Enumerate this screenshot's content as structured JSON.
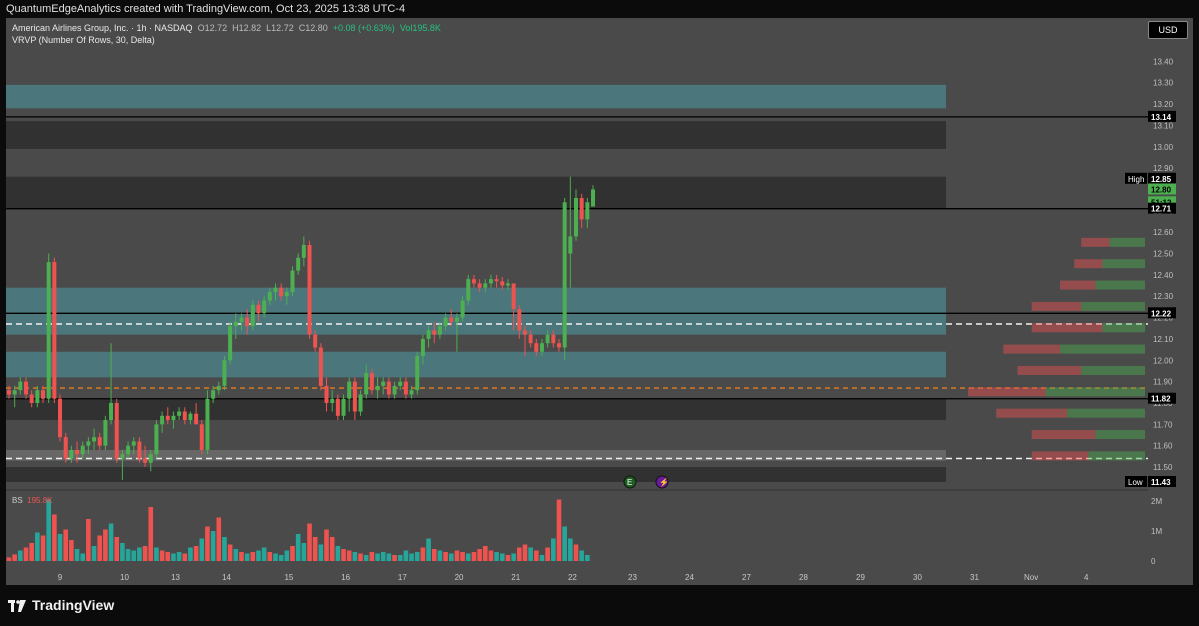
{
  "header": {
    "credit": "QuantumEdgeAnalytics created with TradingView.com, Oct 23, 2025 13:38 UTC-4"
  },
  "legend": {
    "symbol": "American Airlines Group, Inc. · 1h · NASDAQ",
    "open": "O12.72",
    "high": "H12.82",
    "low": "L12.72",
    "close": "C12.80",
    "change": "+0.08 (+0.63%)",
    "volume": "Vol195.8K",
    "indicator": "VRVP (Number Of Rows, 30, Delta)"
  },
  "currency": "USD",
  "brand": "TradingView",
  "volume_legend": {
    "label": "BS",
    "value": "195.8K"
  },
  "colors": {
    "up": "#4caf50",
    "down": "#ef5350",
    "upVolume": "#26a69a",
    "downVolume": "#ef5350",
    "zone": "#4ec9d8",
    "dimZone": "#262626"
  },
  "chart_data": {
    "type": "candlestick",
    "title": "American Airlines Group, Inc. · 1h · NASDAQ",
    "ylim": [
      11.43,
      13.5
    ],
    "yticks": [
      11.5,
      11.6,
      11.7,
      11.8,
      11.9,
      12.0,
      12.1,
      12.2,
      12.3,
      12.4,
      12.5,
      12.6,
      12.7,
      12.8,
      12.9,
      13.0,
      13.1,
      13.2,
      13.3,
      13.4
    ],
    "ytick_labels": [
      "11.50",
      "11.60",
      "11.70",
      "11.80",
      "11.90",
      "12.00",
      "12.10",
      "12.20",
      "12.30",
      "12.40",
      "12.50",
      "12.60",
      "12.70",
      "12.80",
      "12.90",
      "13.00",
      "13.10",
      "13.20",
      "13.30",
      "13.40"
    ],
    "x_labels": [
      "9",
      "10",
      "13",
      "14",
      "15",
      "16",
      "17",
      "20",
      "21",
      "22",
      "23",
      "24",
      "27",
      "28",
      "29",
      "30",
      "31",
      "Nov",
      "4"
    ],
    "candles": [
      [
        11.86,
        11.88,
        11.82,
        11.84
      ],
      [
        11.84,
        11.88,
        11.78,
        11.86
      ],
      [
        11.86,
        11.92,
        11.84,
        11.9
      ],
      [
        11.9,
        11.92,
        11.82,
        11.84
      ],
      [
        11.84,
        11.86,
        11.78,
        11.8
      ],
      [
        11.8,
        11.88,
        11.78,
        11.86
      ],
      [
        11.86,
        11.88,
        11.8,
        11.82
      ],
      [
        11.82,
        12.5,
        11.8,
        12.46
      ],
      [
        12.46,
        12.48,
        11.8,
        11.82
      ],
      [
        11.82,
        11.84,
        11.62,
        11.64
      ],
      [
        11.64,
        11.66,
        11.52,
        11.54
      ],
      [
        11.54,
        11.6,
        11.52,
        11.58
      ],
      [
        11.58,
        11.62,
        11.52,
        11.56
      ],
      [
        11.56,
        11.62,
        11.54,
        11.6
      ],
      [
        11.6,
        11.64,
        11.56,
        11.62
      ],
      [
        11.62,
        11.68,
        11.58,
        11.64
      ],
      [
        11.64,
        11.66,
        11.58,
        11.6
      ],
      [
        11.6,
        11.74,
        11.58,
        11.72
      ],
      [
        11.72,
        12.08,
        11.7,
        11.8
      ],
      [
        11.8,
        11.82,
        11.52,
        11.54
      ],
      [
        11.54,
        11.58,
        11.44,
        11.56
      ],
      [
        11.56,
        11.62,
        11.54,
        11.6
      ],
      [
        11.6,
        11.64,
        11.56,
        11.62
      ],
      [
        11.62,
        11.64,
        11.52,
        11.54
      ],
      [
        11.54,
        11.6,
        11.5,
        11.52
      ],
      [
        11.52,
        11.58,
        11.48,
        11.56
      ],
      [
        11.56,
        11.72,
        11.54,
        11.7
      ],
      [
        11.7,
        11.76,
        11.66,
        11.74
      ],
      [
        11.74,
        11.78,
        11.7,
        11.72
      ],
      [
        11.72,
        11.76,
        11.68,
        11.74
      ],
      [
        11.74,
        11.78,
        11.72,
        11.76
      ],
      [
        11.76,
        11.78,
        11.7,
        11.72
      ],
      [
        11.72,
        11.76,
        11.7,
        11.75
      ],
      [
        11.75,
        11.8,
        11.72,
        11.7
      ],
      [
        11.7,
        11.72,
        11.56,
        11.58
      ],
      [
        11.58,
        11.86,
        11.56,
        11.82
      ],
      [
        11.82,
        11.88,
        11.8,
        11.86
      ],
      [
        11.86,
        11.9,
        11.84,
        11.88
      ],
      [
        11.88,
        12.02,
        11.86,
        12.0
      ],
      [
        12.0,
        12.18,
        11.98,
        12.16
      ],
      [
        12.16,
        12.22,
        12.1,
        12.18
      ],
      [
        12.18,
        12.22,
        12.14,
        12.2
      ],
      [
        12.2,
        12.24,
        12.12,
        12.16
      ],
      [
        12.16,
        12.28,
        12.14,
        12.26
      ],
      [
        12.26,
        12.28,
        12.18,
        12.22
      ],
      [
        12.22,
        12.3,
        12.2,
        12.28
      ],
      [
        12.28,
        12.34,
        12.26,
        12.32
      ],
      [
        12.32,
        12.36,
        12.28,
        12.34
      ],
      [
        12.34,
        12.36,
        12.28,
        12.3
      ],
      [
        12.3,
        12.34,
        12.26,
        12.32
      ],
      [
        12.32,
        12.44,
        12.3,
        12.42
      ],
      [
        12.42,
        12.5,
        12.4,
        12.48
      ],
      [
        12.48,
        12.58,
        12.44,
        12.54
      ],
      [
        12.54,
        12.56,
        12.1,
        12.12
      ],
      [
        12.12,
        12.14,
        12.04,
        12.06
      ],
      [
        12.06,
        12.08,
        11.86,
        11.88
      ],
      [
        11.88,
        11.92,
        11.76,
        11.8
      ],
      [
        11.8,
        11.86,
        11.76,
        11.82
      ],
      [
        11.82,
        11.84,
        11.72,
        11.74
      ],
      [
        11.74,
        11.84,
        11.72,
        11.82
      ],
      [
        11.82,
        11.92,
        11.76,
        11.9
      ],
      [
        11.9,
        11.92,
        11.72,
        11.76
      ],
      [
        11.76,
        11.86,
        11.74,
        11.84
      ],
      [
        11.84,
        11.98,
        11.82,
        11.94
      ],
      [
        11.94,
        11.96,
        11.84,
        11.86
      ],
      [
        11.86,
        11.92,
        11.82,
        11.88
      ],
      [
        11.88,
        11.92,
        11.84,
        11.9
      ],
      [
        11.9,
        11.92,
        11.82,
        11.84
      ],
      [
        11.84,
        11.9,
        11.82,
        11.88
      ],
      [
        11.88,
        11.92,
        11.86,
        11.9
      ],
      [
        11.9,
        11.92,
        11.82,
        11.84
      ],
      [
        11.84,
        11.88,
        11.82,
        11.86
      ],
      [
        11.86,
        12.04,
        11.84,
        12.02
      ],
      [
        12.02,
        12.12,
        11.98,
        12.1
      ],
      [
        12.1,
        12.16,
        12.06,
        12.14
      ],
      [
        12.14,
        12.18,
        12.08,
        12.12
      ],
      [
        12.12,
        12.18,
        12.1,
        12.16
      ],
      [
        12.16,
        12.22,
        12.14,
        12.2
      ],
      [
        12.2,
        12.24,
        12.16,
        12.18
      ],
      [
        12.18,
        12.22,
        12.04,
        12.2
      ],
      [
        12.2,
        12.3,
        12.18,
        12.28
      ],
      [
        12.28,
        12.4,
        12.26,
        12.38
      ],
      [
        12.38,
        12.4,
        12.34,
        12.36
      ],
      [
        12.36,
        12.38,
        12.32,
        12.34
      ],
      [
        12.34,
        12.38,
        12.32,
        12.36
      ],
      [
        12.36,
        12.4,
        12.34,
        12.38
      ],
      [
        12.38,
        12.4,
        12.34,
        12.37
      ],
      [
        12.37,
        12.39,
        12.33,
        12.35
      ],
      [
        12.35,
        12.38,
        12.33,
        12.36
      ],
      [
        12.36,
        12.36,
        12.14,
        12.24
      ],
      [
        12.24,
        12.26,
        12.1,
        12.14
      ],
      [
        12.14,
        12.16,
        12.02,
        12.12
      ],
      [
        12.12,
        12.14,
        12.06,
        12.08
      ],
      [
        12.08,
        12.1,
        12.02,
        12.04
      ],
      [
        12.04,
        12.1,
        12.02,
        12.08
      ],
      [
        12.08,
        12.14,
        12.06,
        12.12
      ],
      [
        12.12,
        12.14,
        12.06,
        12.08
      ],
      [
        12.08,
        12.1,
        12.04,
        12.06
      ],
      [
        12.06,
        12.76,
        12.0,
        12.74
      ],
      [
        12.5,
        12.86,
        12.34,
        12.58
      ],
      [
        12.58,
        12.8,
        12.56,
        12.76
      ],
      [
        12.76,
        12.78,
        12.62,
        12.66
      ],
      [
        12.66,
        12.76,
        12.62,
        12.74
      ],
      [
        12.72,
        12.82,
        12.72,
        12.8
      ]
    ],
    "volume": [
      [
        0.12,
        0
      ],
      [
        0.22,
        0
      ],
      [
        0.35,
        1
      ],
      [
        0.45,
        0
      ],
      [
        0.6,
        0
      ],
      [
        0.95,
        1
      ],
      [
        0.85,
        0
      ],
      [
        2.05,
        1
      ],
      [
        1.55,
        0
      ],
      [
        0.9,
        1
      ],
      [
        1.05,
        0
      ],
      [
        0.7,
        0
      ],
      [
        0.4,
        1
      ],
      [
        0.25,
        1
      ],
      [
        1.4,
        0
      ],
      [
        0.5,
        1
      ],
      [
        0.85,
        0
      ],
      [
        1.05,
        0
      ],
      [
        1.25,
        1
      ],
      [
        0.8,
        0
      ],
      [
        0.6,
        1
      ],
      [
        0.4,
        1
      ],
      [
        0.35,
        1
      ],
      [
        0.45,
        1
      ],
      [
        0.5,
        0
      ],
      [
        1.8,
        0
      ],
      [
        0.45,
        1
      ],
      [
        0.35,
        0
      ],
      [
        0.3,
        0
      ],
      [
        0.25,
        1
      ],
      [
        0.3,
        1
      ],
      [
        0.25,
        0
      ],
      [
        0.45,
        1
      ],
      [
        0.5,
        0
      ],
      [
        0.75,
        1
      ],
      [
        1.15,
        0
      ],
      [
        1.0,
        1
      ],
      [
        1.45,
        0
      ],
      [
        0.8,
        1
      ],
      [
        0.55,
        0
      ],
      [
        0.4,
        1
      ],
      [
        0.3,
        0
      ],
      [
        0.25,
        1
      ],
      [
        0.3,
        0
      ],
      [
        0.35,
        1
      ],
      [
        0.45,
        1
      ],
      [
        0.3,
        0
      ],
      [
        0.25,
        1
      ],
      [
        0.2,
        1
      ],
      [
        0.35,
        1
      ],
      [
        0.5,
        0
      ],
      [
        0.9,
        1
      ],
      [
        0.6,
        1
      ],
      [
        1.25,
        0
      ],
      [
        0.8,
        0
      ],
      [
        0.55,
        1
      ],
      [
        1.05,
        0
      ],
      [
        0.8,
        0
      ],
      [
        0.5,
        1
      ],
      [
        0.4,
        0
      ],
      [
        0.35,
        0
      ],
      [
        0.3,
        1
      ],
      [
        0.25,
        0
      ],
      [
        0.2,
        1
      ],
      [
        0.3,
        0
      ],
      [
        0.25,
        1
      ],
      [
        0.3,
        1
      ],
      [
        0.25,
        1
      ],
      [
        0.2,
        0
      ],
      [
        0.2,
        1
      ],
      [
        0.35,
        1
      ],
      [
        0.25,
        1
      ],
      [
        0.3,
        1
      ],
      [
        0.45,
        0
      ],
      [
        0.75,
        1
      ],
      [
        0.4,
        0
      ],
      [
        0.35,
        1
      ],
      [
        0.3,
        0
      ],
      [
        0.25,
        1
      ],
      [
        0.35,
        0
      ],
      [
        0.3,
        0
      ],
      [
        0.25,
        1
      ],
      [
        0.3,
        0
      ],
      [
        0.4,
        0
      ],
      [
        0.5,
        0
      ],
      [
        0.35,
        0
      ],
      [
        0.3,
        1
      ],
      [
        0.25,
        1
      ],
      [
        0.2,
        0
      ],
      [
        0.25,
        1
      ],
      [
        0.45,
        0
      ],
      [
        0.55,
        0
      ],
      [
        0.45,
        1
      ],
      [
        0.35,
        0
      ],
      [
        0.2,
        1
      ],
      [
        0.45,
        0
      ],
      [
        0.75,
        1
      ],
      [
        2.05,
        0
      ],
      [
        1.15,
        1
      ],
      [
        0.75,
        1
      ],
      [
        0.55,
        0
      ],
      [
        0.35,
        1
      ],
      [
        0.2,
        1
      ]
    ],
    "volume_ticks": [
      "2M",
      "1M",
      "0"
    ],
    "price_tags": [
      {
        "label": "13.14",
        "price": 13.14,
        "style": "line"
      },
      {
        "label": "12.85",
        "price": 12.85,
        "style": "high",
        "caption": "High"
      },
      {
        "label": "12.80",
        "price": 12.8,
        "style": "current"
      },
      {
        "label": "51:12",
        "price": 12.74,
        "style": "countdown"
      },
      {
        "label": "12.71",
        "price": 12.71,
        "style": "line"
      },
      {
        "label": "12.22",
        "price": 12.22,
        "style": "line"
      },
      {
        "label": "11.82",
        "price": 11.82,
        "style": "line"
      },
      {
        "label": "11.43",
        "price": 11.43,
        "style": "low",
        "caption": "Low"
      }
    ],
    "zones": [
      {
        "y1": 13.29,
        "y2": 13.18,
        "kind": "teal"
      },
      {
        "y1": 13.12,
        "y2": 12.99,
        "kind": "dim"
      },
      {
        "y1": 12.86,
        "y2": 12.71,
        "kind": "dim"
      },
      {
        "y1": 12.34,
        "y2": 12.12,
        "kind": "teal"
      },
      {
        "y1": 12.04,
        "y2": 11.92,
        "kind": "teal"
      },
      {
        "y1": 11.82,
        "y2": 11.72,
        "kind": "dim"
      },
      {
        "y1": 11.58,
        "y2": 11.53,
        "kind": "gray"
      },
      {
        "y1": 11.5,
        "y2": 11.43,
        "kind": "dim"
      }
    ],
    "hlines": [
      {
        "price": 13.14,
        "style": "solid"
      },
      {
        "price": 12.71,
        "style": "solid"
      },
      {
        "price": 12.22,
        "style": "solid"
      },
      {
        "price": 12.17,
        "style": "dashed-white"
      },
      {
        "price": 11.87,
        "style": "dashed-orange"
      },
      {
        "price": 11.82,
        "style": "solid"
      },
      {
        "price": 11.54,
        "style": "dashed-white"
      }
    ],
    "vrvp": [
      {
        "price": 12.55,
        "buy": 25,
        "sell": 20
      },
      {
        "price": 12.45,
        "buy": 30,
        "sell": 20
      },
      {
        "price": 12.35,
        "buy": 35,
        "sell": 25
      },
      {
        "price": 12.25,
        "buy": 45,
        "sell": 35
      },
      {
        "price": 12.15,
        "buy": 30,
        "sell": 50
      },
      {
        "price": 12.05,
        "buy": 60,
        "sell": 40
      },
      {
        "price": 11.95,
        "buy": 45,
        "sell": 45
      },
      {
        "price": 11.85,
        "buy": 70,
        "sell": 55
      },
      {
        "price": 11.75,
        "buy": 55,
        "sell": 50
      },
      {
        "price": 11.65,
        "buy": 35,
        "sell": 45
      },
      {
        "price": 11.55,
        "buy": 40,
        "sell": 40
      }
    ],
    "markers": [
      {
        "label": "E",
        "candle": 98,
        "kind": "earnings"
      },
      {
        "label": "⚡",
        "candle": 102,
        "kind": "event"
      }
    ]
  }
}
